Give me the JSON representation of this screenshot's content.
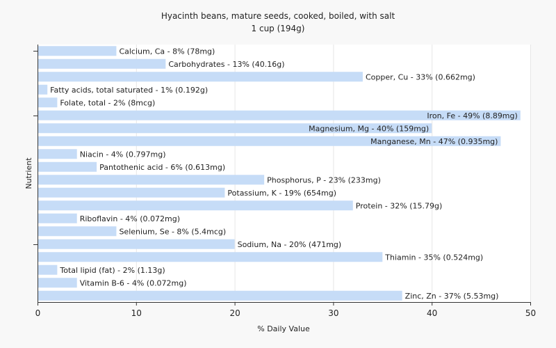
{
  "chart_data": {
    "type": "bar",
    "orientation": "horizontal",
    "title": "Hyacinth beans, mature seeds, cooked, boiled, with salt",
    "subtitle": "1 cup (194g)",
    "xlabel": "% Daily Value",
    "ylabel": "Nutrient",
    "xlim": [
      0,
      50
    ],
    "xticks": [
      "0",
      "10",
      "20",
      "30",
      "40",
      "50"
    ],
    "grid": true,
    "bar_color": "#c6dcf7",
    "categories": [
      "Calcium, Ca",
      "Carbohydrates",
      "Copper, Cu",
      "Fatty acids, total saturated",
      "Folate, total",
      "Iron, Fe",
      "Magnesium, Mg",
      "Manganese, Mn",
      "Niacin",
      "Pantothenic acid",
      "Phosphorus, P",
      "Potassium, K",
      "Protein",
      "Riboflavin",
      "Selenium, Se",
      "Sodium, Na",
      "Thiamin",
      "Total lipid (fat)",
      "Vitamin B-6",
      "Zinc, Zn"
    ],
    "values": [
      8,
      13,
      33,
      1,
      2,
      49,
      40,
      47,
      4,
      6,
      23,
      19,
      32,
      4,
      8,
      20,
      35,
      2,
      4,
      37
    ],
    "labels": [
      "Calcium, Ca - 8% (78mg)",
      "Carbohydrates - 13% (40.16g)",
      "Copper, Cu - 33% (0.662mg)",
      "Fatty acids, total saturated - 1% (0.192g)",
      "Folate, total - 2% (8mcg)",
      "Iron, Fe - 49% (8.89mg)",
      "Magnesium, Mg - 40% (159mg)",
      "Manganese, Mn - 47% (0.935mg)",
      "Niacin - 4% (0.797mg)",
      "Pantothenic acid - 6% (0.613mg)",
      "Phosphorus, P - 23% (233mg)",
      "Potassium, K - 19% (654mg)",
      "Protein - 32% (15.79g)",
      "Riboflavin - 4% (0.072mg)",
      "Selenium, Se - 8% (5.4mcg)",
      "Sodium, Na - 20% (471mg)",
      "Thiamin - 35% (0.524mg)",
      "Total lipid (fat) - 2% (1.13g)",
      "Vitamin B-6 - 4% (0.072mg)",
      "Zinc, Zn - 37% (5.53mg)"
    ]
  }
}
